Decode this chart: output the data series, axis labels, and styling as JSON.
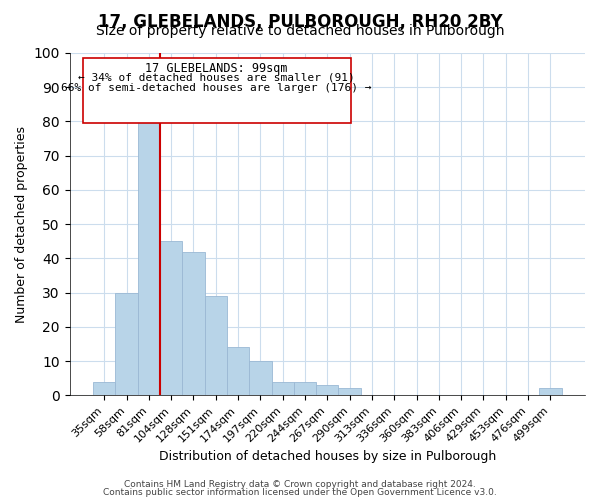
{
  "title": "17, GLEBELANDS, PULBOROUGH, RH20 2BY",
  "subtitle": "Size of property relative to detached houses in Pulborough",
  "xlabel": "Distribution of detached houses by size in Pulborough",
  "ylabel": "Number of detached properties",
  "bar_labels": [
    "35sqm",
    "58sqm",
    "81sqm",
    "104sqm",
    "128sqm",
    "151sqm",
    "174sqm",
    "197sqm",
    "220sqm",
    "244sqm",
    "267sqm",
    "290sqm",
    "313sqm",
    "336sqm",
    "360sqm",
    "383sqm",
    "406sqm",
    "429sqm",
    "453sqm",
    "476sqm",
    "499sqm"
  ],
  "bar_heights": [
    4,
    30,
    80,
    45,
    42,
    29,
    14,
    10,
    4,
    4,
    3,
    2,
    0,
    0,
    0,
    0,
    0,
    0,
    0,
    0,
    2
  ],
  "bar_color": "#b8d4e8",
  "bar_edge_color": "#9ab8d4",
  "vline_x_index": 2,
  "vline_color": "#cc0000",
  "ylim": [
    0,
    100
  ],
  "annotation_lines": [
    "17 GLEBELANDS: 99sqm",
    "← 34% of detached houses are smaller (91)",
    "66% of semi-detached houses are larger (176) →"
  ],
  "footer_line1": "Contains HM Land Registry data © Crown copyright and database right 2024.",
  "footer_line2": "Contains public sector information licensed under the Open Government Licence v3.0.",
  "background_color": "#ffffff",
  "grid_color": "#ccdded",
  "title_fontsize": 12,
  "subtitle_fontsize": 10,
  "ylabel_fontsize": 9,
  "xlabel_fontsize": 9,
  "tick_fontsize": 8,
  "ann_fontsize": 8.5,
  "footer_fontsize": 6.5
}
